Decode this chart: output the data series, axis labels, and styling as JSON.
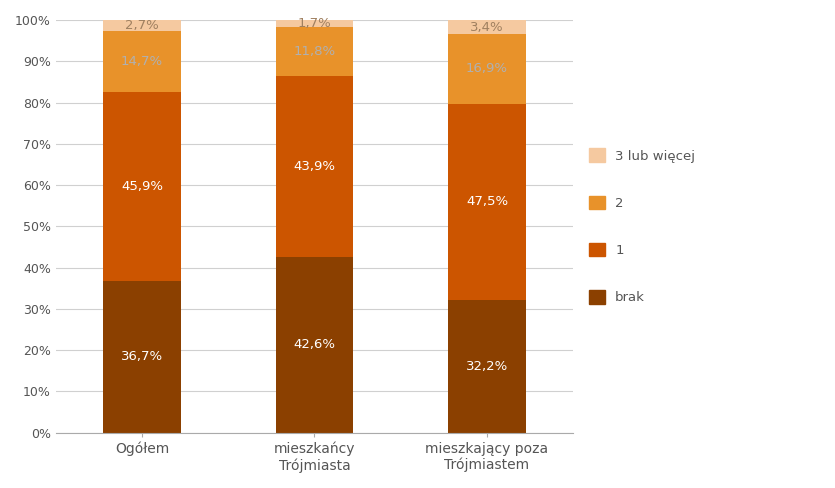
{
  "categories": [
    "Ogółem",
    "mieszkańcy\nTrójmiasta",
    "mieszkający poza\nTrójmiastem"
  ],
  "series": {
    "brak": [
      36.7,
      42.6,
      32.2
    ],
    "1": [
      45.9,
      43.9,
      47.5
    ],
    "2": [
      14.7,
      11.8,
      16.9
    ],
    "3 lub więcej": [
      2.7,
      1.7,
      3.4
    ]
  },
  "colors": {
    "brak": "#8B4000",
    "1": "#CC5500",
    "2": "#E8922A",
    "3 lub więcej": "#F5C9A0"
  },
  "text_colors": {
    "brak": "#FFFFFF",
    "1": "#FFFFFF",
    "2": "#B0B0B0",
    "3 lub więcej": "#A08060"
  },
  "legend_labels": [
    "3 lub więcej",
    "2",
    "1",
    "brak"
  ],
  "ylim": [
    0,
    100
  ],
  "yticks": [
    0,
    10,
    20,
    30,
    40,
    50,
    60,
    70,
    80,
    90,
    100
  ],
  "bar_width": 0.45,
  "figsize": [
    8.35,
    4.88
  ],
  "dpi": 100,
  "bg_color": "#FFFFFF"
}
